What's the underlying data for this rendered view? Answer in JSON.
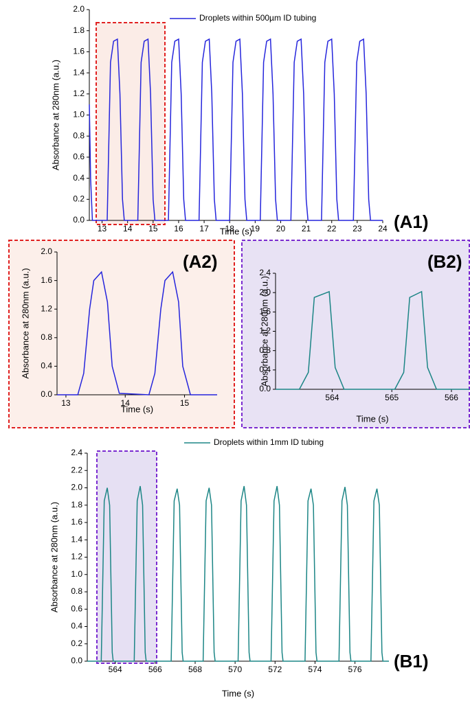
{
  "chart_data": [
    {
      "type": "line",
      "panel_label": "(A1)",
      "x_label": "Time (s)",
      "y_label": "Absorbance at 280nm (a.u.)",
      "xlim": [
        12.5,
        24
      ],
      "xticks": [
        13,
        14,
        15,
        16,
        17,
        18,
        19,
        20,
        21,
        22,
        23,
        24
      ],
      "ylim": [
        0,
        2
      ],
      "yticks": [
        {
          "value": 0,
          "label": "0.0"
        },
        {
          "value": 0.2,
          "label": "0.2"
        },
        {
          "value": 0.4,
          "label": "0.4"
        },
        {
          "value": 0.6,
          "label": "0.6"
        },
        {
          "value": 0.8,
          "label": "0.8"
        },
        {
          "value": 1,
          "label": "1.0"
        },
        {
          "value": 1.2,
          "label": "1.2"
        },
        {
          "value": 1.4,
          "label": "1.4"
        },
        {
          "value": 1.6,
          "label": "1.6"
        },
        {
          "value": 1.8,
          "label": "1.8"
        },
        {
          "value": 2,
          "label": "2.0"
        }
      ],
      "x": [
        12.5,
        12.55,
        12.62,
        13.2,
        13.33,
        13.45,
        13.6,
        13.7,
        13.8,
        13.87,
        14.4,
        14.53,
        14.65,
        14.8,
        14.9,
        15.0,
        15.07,
        15.6,
        15.73,
        15.85,
        16.0,
        16.1,
        16.2,
        16.27,
        16.8,
        16.93,
        17.05,
        17.2,
        17.3,
        17.4,
        17.47,
        18.0,
        18.13,
        18.25,
        18.4,
        18.5,
        18.6,
        18.67,
        19.2,
        19.33,
        19.45,
        19.6,
        19.7,
        19.8,
        19.87,
        20.4,
        20.53,
        20.65,
        20.8,
        20.9,
        21.0,
        21.07,
        21.6,
        21.73,
        21.85,
        22.0,
        22.1,
        22.2,
        22.27,
        22.85,
        22.98,
        23.1,
        23.25,
        23.35,
        23.45,
        23.52,
        24
      ],
      "series": [
        {
          "name": "Droplets within 500µm ID tubing",
          "color": "#2424dc",
          "values": [
            1.1,
            0.4,
            0,
            0,
            1.5,
            1.7,
            1.72,
            1.2,
            0.2,
            0,
            0,
            1.5,
            1.7,
            1.72,
            1.2,
            0.2,
            0,
            0,
            1.5,
            1.7,
            1.72,
            1.2,
            0.2,
            0,
            0,
            1.5,
            1.7,
            1.72,
            1.2,
            0.2,
            0,
            0,
            1.5,
            1.7,
            1.72,
            1.2,
            0.2,
            0,
            0,
            1.5,
            1.7,
            1.72,
            1.2,
            0.2,
            0,
            0,
            1.5,
            1.7,
            1.72,
            1.2,
            0.2,
            0,
            0,
            1.5,
            1.7,
            1.72,
            1.2,
            0.2,
            0,
            0,
            1.5,
            1.7,
            1.72,
            1.2,
            0.2,
            0,
            0
          ]
        }
      ]
    },
    {
      "type": "line",
      "panel_label": "(A2)",
      "x_label": "Time (s)",
      "y_label": "Absorbance at 280nm (a.u.)",
      "xlim": [
        12.85,
        15.55
      ],
      "xticks": [
        13,
        14,
        15
      ],
      "ylim": [
        0,
        2
      ],
      "yticks": [
        {
          "value": 0,
          "label": "0.0"
        },
        {
          "value": 0.4,
          "label": "0.4"
        },
        {
          "value": 0.8,
          "label": "0.8"
        },
        {
          "value": 1.2,
          "label": "1.2"
        },
        {
          "value": 1.6,
          "label": "1.6"
        },
        {
          "value": 2,
          "label": "2.0"
        }
      ],
      "x": [
        12.85,
        13.2,
        13.3,
        13.4,
        13.47,
        13.6,
        13.7,
        13.78,
        13.9,
        14.4,
        14.5,
        14.6,
        14.67,
        14.8,
        14.9,
        14.97,
        15.1,
        15.55
      ],
      "series": [
        {
          "color": "#2424dc",
          "values": [
            0,
            0,
            0.3,
            1.2,
            1.6,
            1.72,
            1.3,
            0.4,
            0.02,
            0,
            0.3,
            1.2,
            1.6,
            1.72,
            1.3,
            0.4,
            0,
            0
          ]
        }
      ]
    },
    {
      "type": "line",
      "panel_label": "(B2)",
      "x_label": "Time (s)",
      "y_label": "Absorbance at 280nm (a.u.)",
      "xlim": [
        563.05,
        566.3
      ],
      "xticks": [
        564,
        565,
        566
      ],
      "ylim": [
        0,
        2.4
      ],
      "yticks": [
        {
          "value": 0,
          "label": "0.0"
        },
        {
          "value": 0.4,
          "label": "0.4"
        },
        {
          "value": 0.8,
          "label": "0.8"
        },
        {
          "value": 1.2,
          "label": "1.2"
        },
        {
          "value": 1.6,
          "label": "1.6"
        },
        {
          "value": 2,
          "label": "2.0"
        },
        {
          "value": 2.4,
          "label": "2.4"
        }
      ],
      "x": [
        563.05,
        563.45,
        563.6,
        563.7,
        563.95,
        564.05,
        564.2,
        565.05,
        565.2,
        565.3,
        565.5,
        565.6,
        565.75,
        566.3
      ],
      "series": [
        {
          "color": "#1b8585",
          "values": [
            0,
            0,
            0.35,
            1.9,
            2.02,
            0.45,
            0,
            0,
            0.35,
            1.9,
            2.02,
            0.45,
            0,
            0
          ]
        }
      ]
    },
    {
      "type": "line",
      "panel_label": "(B1)",
      "x_label": "Time (s)",
      "y_label": "Absorbance at 280nm (a.u.)",
      "xlim": [
        562.6,
        577.7
      ],
      "xticks": [
        564,
        566,
        568,
        570,
        572,
        574,
        576
      ],
      "ylim": [
        0,
        2.4
      ],
      "yticks": [
        {
          "value": 0,
          "label": "0.0"
        },
        {
          "value": 0.2,
          "label": "0.2"
        },
        {
          "value": 0.4,
          "label": "0.4"
        },
        {
          "value": 0.6,
          "label": "0.6"
        },
        {
          "value": 0.8,
          "label": "0.8"
        },
        {
          "value": 1,
          "label": "1.0"
        },
        {
          "value": 1.2,
          "label": "1.2"
        },
        {
          "value": 1.4,
          "label": "1.4"
        },
        {
          "value": 1.6,
          "label": "1.6"
        },
        {
          "value": 1.8,
          "label": "1.8"
        },
        {
          "value": 2,
          "label": "2.0"
        },
        {
          "value": 2.2,
          "label": "2.2"
        },
        {
          "value": 2.4,
          "label": "2.4"
        }
      ],
      "x": [
        562.6,
        563.3,
        563.45,
        563.6,
        563.72,
        563.85,
        563.9,
        564.95,
        565.1,
        565.25,
        565.37,
        565.5,
        565.55,
        566.8,
        566.95,
        567.1,
        567.22,
        567.35,
        567.4,
        568.4,
        568.55,
        568.7,
        568.82,
        568.95,
        569.0,
        570.15,
        570.3,
        570.45,
        570.57,
        570.7,
        570.75,
        571.8,
        571.95,
        572.1,
        572.22,
        572.35,
        572.4,
        573.5,
        573.65,
        573.8,
        573.92,
        574.05,
        574.1,
        575.2,
        575.35,
        575.5,
        575.62,
        575.75,
        575.8,
        576.8,
        576.95,
        577.1,
        577.22,
        577.35,
        577.4,
        577.7
      ],
      "series": [
        {
          "name": "Droplets within 1mm ID tubing",
          "color": "#1b8585",
          "values": [
            0,
            0,
            1.85,
            2.0,
            1.8,
            0.1,
            0,
            0,
            1.85,
            2.02,
            1.8,
            0.1,
            0,
            0,
            1.85,
            1.99,
            1.8,
            0.1,
            0,
            0,
            1.85,
            2.0,
            1.8,
            0.1,
            0,
            0,
            1.85,
            2.02,
            1.8,
            0.1,
            0,
            0,
            1.85,
            2.02,
            1.8,
            0.1,
            0,
            0,
            1.85,
            1.99,
            1.8,
            0.1,
            0,
            0,
            1.85,
            2.01,
            1.8,
            0.1,
            0,
            0,
            1.85,
            1.99,
            1.8,
            0.1,
            0,
            0
          ]
        }
      ]
    }
  ]
}
